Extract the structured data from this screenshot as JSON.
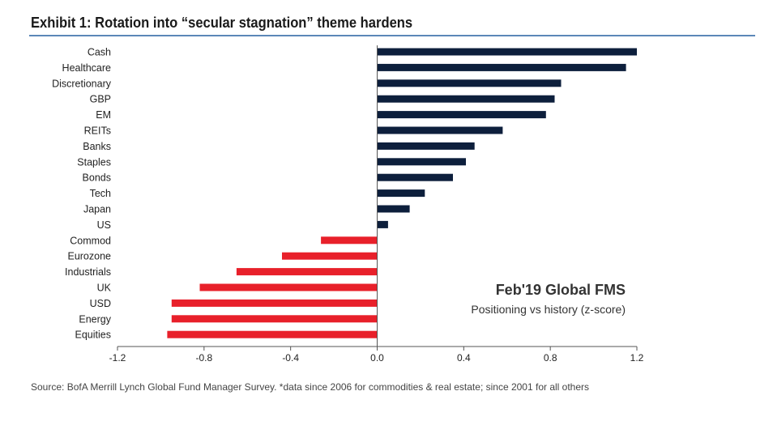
{
  "title": "Exhibit 1: Rotation into “secular stagnation” theme hardens",
  "source": "Source:  BofA Merrill Lynch Global Fund Manager Survey. *data since 2006 for commodities & real estate; since 2001  for all others",
  "colors": {
    "positive": "#0d1f3c",
    "negative": "#e8202a",
    "axis": "#555555",
    "title_rule": "#5b87b8"
  },
  "chart_data": {
    "type": "bar",
    "orientation": "horizontal",
    "categories": [
      "Cash",
      "Healthcare",
      "Discretionary",
      "GBP",
      "EM",
      "REITs",
      "Banks",
      "Staples",
      "Bonds",
      "Tech",
      "Japan",
      "US",
      "Commod",
      "Eurozone",
      "Industrials",
      "UK",
      "USD",
      "Energy",
      "Equities"
    ],
    "values": [
      1.2,
      1.15,
      0.85,
      0.82,
      0.78,
      0.58,
      0.45,
      0.41,
      0.35,
      0.22,
      0.15,
      0.05,
      -0.26,
      -0.44,
      -0.65,
      -0.82,
      -0.95,
      -0.95,
      -0.97
    ],
    "xlim": [
      -1.2,
      1.2
    ],
    "xticks": [
      -1.2,
      -0.8,
      -0.4,
      0.0,
      0.4,
      0.8,
      1.2
    ],
    "xtick_labels": [
      "-1.2",
      "-0.8",
      "-0.4",
      "0.0",
      "0.4",
      "0.8",
      "1.2"
    ],
    "annotation": {
      "title": "Feb'19 Global FMS",
      "subtitle": "Positioning vs history (z-score)"
    },
    "grid": false,
    "legend": "none"
  }
}
